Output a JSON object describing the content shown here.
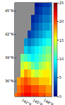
{
  "chart_data": {
    "type": "heatmap",
    "x": [
      140,
      141,
      142,
      143,
      144,
      145,
      146,
      147,
      148,
      149,
      150
    ],
    "y": [
      34,
      35,
      36,
      37,
      38,
      39,
      40,
      41,
      42,
      43,
      44,
      45,
      46
    ],
    "z": [
      [
        19,
        20,
        21,
        22,
        22,
        21,
        21,
        20,
        20,
        19,
        19
      ],
      [
        null,
        19,
        20,
        21,
        21,
        20,
        20,
        19,
        19,
        18,
        18
      ],
      [
        null,
        18,
        19,
        20,
        19,
        18,
        18,
        17,
        17,
        17,
        16
      ],
      [
        null,
        null,
        16,
        18,
        17,
        15,
        14,
        15,
        16,
        16,
        15
      ],
      [
        null,
        null,
        14,
        15,
        14,
        12,
        11,
        13,
        14,
        15,
        14
      ],
      [
        null,
        null,
        12,
        11,
        10,
        9,
        10,
        11,
        12,
        13,
        13
      ],
      [
        null,
        null,
        null,
        8,
        7,
        8,
        9,
        10,
        11,
        12,
        12
      ],
      [
        null,
        null,
        null,
        6,
        5,
        6,
        7,
        8,
        9,
        10,
        10
      ],
      [
        null,
        null,
        null,
        null,
        3,
        4,
        5,
        6,
        7,
        8,
        8
      ],
      [
        null,
        null,
        null,
        null,
        null,
        3,
        4,
        5,
        6,
        6,
        7
      ],
      [
        null,
        null,
        null,
        null,
        null,
        2,
        3,
        4,
        5,
        5,
        6
      ],
      [
        null,
        null,
        null,
        null,
        null,
        null,
        2,
        3,
        4,
        4,
        5
      ],
      [
        null,
        null,
        null,
        null,
        null,
        null,
        1,
        2,
        3,
        3,
        4
      ]
    ],
    "xlim": [
      140,
      150
    ],
    "xticks": [
      {
        "value": 142,
        "label": "142°E"
      },
      {
        "value": 145,
        "label": "145°E"
      },
      {
        "value": 148,
        "label": "148°E"
      }
    ],
    "ylim": [
      34,
      46
    ],
    "yticks": [
      {
        "value": 36,
        "label": "36°N"
      },
      {
        "value": 39,
        "label": "39°N"
      },
      {
        "value": 42,
        "label": "42°N"
      },
      {
        "value": 45,
        "label": "45°N"
      }
    ],
    "colorbar_range": [
      0,
      25
    ],
    "colorbar_ticks": [
      0,
      5,
      10,
      15,
      20,
      25
    ],
    "color": "Jet"
  }
}
